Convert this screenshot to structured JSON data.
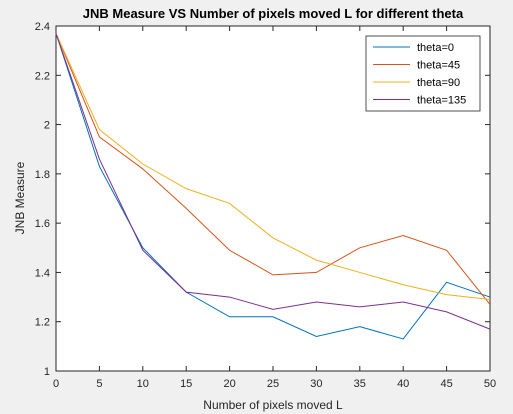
{
  "chart_data": {
    "type": "line",
    "title": "JNB Measure VS Number of pixels moved L for different theta",
    "xlabel": "Number of pixels moved L",
    "ylabel": "JNB Measure",
    "xlim": [
      0,
      50
    ],
    "ylim": [
      1,
      2.4
    ],
    "x_ticks": [
      "0",
      "5",
      "10",
      "15",
      "20",
      "25",
      "30",
      "35",
      "40",
      "45",
      "50"
    ],
    "y_ticks": [
      "1",
      "1.2",
      "1.4",
      "1.6",
      "1.8",
      "2",
      "2.2",
      "2.4"
    ],
    "grid": false,
    "legend_position": "top-right",
    "x": [
      0,
      5,
      10,
      15,
      20,
      25,
      30,
      35,
      40,
      45,
      50
    ],
    "series": [
      {
        "name": "theta=0",
        "color": "#0072BD",
        "values": [
          2.37,
          1.83,
          1.5,
          1.32,
          1.22,
          1.22,
          1.14,
          1.18,
          1.13,
          1.36,
          1.3
        ]
      },
      {
        "name": "theta=45",
        "color": "#D95319",
        "values": [
          2.37,
          1.95,
          1.82,
          1.66,
          1.49,
          1.39,
          1.4,
          1.5,
          1.55,
          1.49,
          1.27
        ]
      },
      {
        "name": "theta=90",
        "color": "#EDB120",
        "values": [
          2.37,
          1.98,
          1.84,
          1.74,
          1.68,
          1.54,
          1.45,
          1.4,
          1.35,
          1.31,
          1.29
        ]
      },
      {
        "name": "theta=135",
        "color": "#7E2F8E",
        "values": [
          2.37,
          1.86,
          1.49,
          1.32,
          1.3,
          1.25,
          1.28,
          1.26,
          1.28,
          1.24,
          1.17
        ]
      }
    ]
  }
}
